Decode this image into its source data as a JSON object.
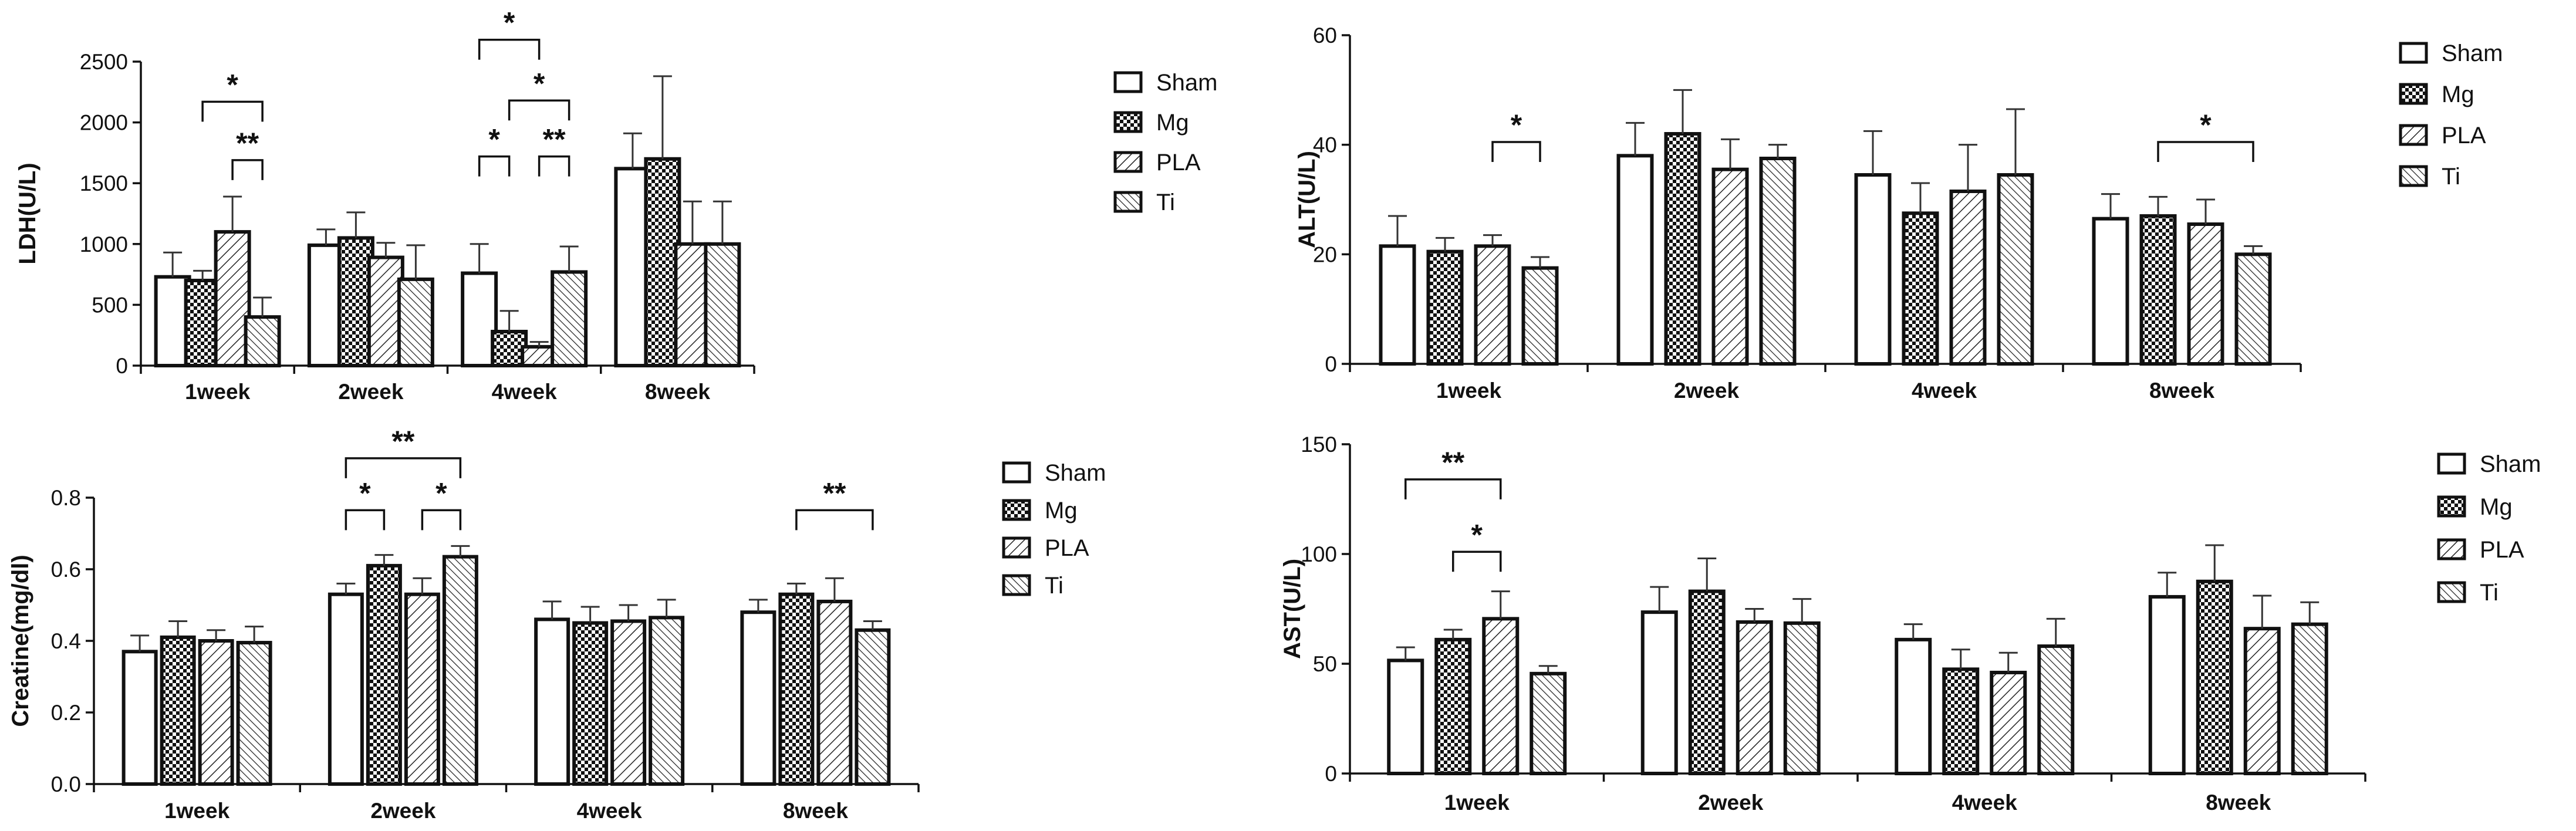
{
  "legend": {
    "sham": "Sham",
    "mg": "Mg",
    "pla": "PLA",
    "ti": "Ti"
  },
  "chart_data": [
    {
      "id": "ldh",
      "type": "bar",
      "ylabel": "LDH(U/L)",
      "xlabel": "",
      "ylim": [
        0,
        2500
      ],
      "yticks": [
        0,
        500,
        1000,
        1500,
        2000,
        2500
      ],
      "categories": [
        "1week",
        "2week",
        "4week",
        "8week"
      ],
      "series": [
        {
          "name": "Sham",
          "values": [
            730,
            990,
            760,
            1620
          ],
          "errors": [
            200,
            130,
            240,
            290
          ]
        },
        {
          "name": "Mg",
          "values": [
            700,
            1050,
            280,
            1700
          ],
          "errors": [
            80,
            210,
            170,
            680
          ]
        },
        {
          "name": "PLA",
          "values": [
            1100,
            890,
            155,
            1000
          ],
          "errors": [
            290,
            120,
            40,
            350
          ]
        },
        {
          "name": "Ti",
          "values": [
            400,
            710,
            770,
            1000
          ],
          "errors": [
            160,
            280,
            210,
            350
          ]
        }
      ],
      "annotations": [
        {
          "cat": 0,
          "from": 1,
          "to": 3,
          "label": "*",
          "value": 2170
        },
        {
          "cat": 0,
          "from": 2,
          "to": 3,
          "label": "**",
          "value": 1690
        },
        {
          "cat": 2,
          "from": 0,
          "to": 2,
          "label": "*",
          "value": 2680
        },
        {
          "cat": 2,
          "from": 1,
          "to": 3,
          "label": "*",
          "value": 2180
        },
        {
          "cat": 2,
          "from": 0,
          "to": 1,
          "label": "*",
          "value": 1720
        },
        {
          "cat": 2,
          "from": 2,
          "to": 3,
          "label": "**",
          "value": 1720
        }
      ]
    },
    {
      "id": "alt",
      "type": "bar",
      "ylabel": "ALT(U/L)",
      "xlabel": "",
      "ylim": [
        0,
        60
      ],
      "yticks": [
        0,
        20,
        40,
        60
      ],
      "categories": [
        "1week",
        "2week",
        "4week",
        "8week"
      ],
      "series": [
        {
          "name": "Sham",
          "values": [
            21.5,
            38,
            34.5,
            26.5
          ],
          "errors": [
            5.5,
            6,
            8,
            4.5
          ]
        },
        {
          "name": "Mg",
          "values": [
            20.5,
            42,
            27.5,
            27
          ],
          "errors": [
            2.5,
            8,
            5.5,
            3.5
          ]
        },
        {
          "name": "PLA",
          "values": [
            21.5,
            35.5,
            31.5,
            25.5
          ],
          "errors": [
            2,
            5.5,
            8.5,
            4.5
          ]
        },
        {
          "name": "Ti",
          "values": [
            17.5,
            37.5,
            34.5,
            20
          ],
          "errors": [
            2,
            2.5,
            12,
            1.5
          ]
        }
      ],
      "annotations": [
        {
          "cat": 0,
          "from": 2,
          "to": 3,
          "label": "*",
          "value": 40.5
        },
        {
          "cat": 3,
          "from": 1,
          "to": 3,
          "label": "*",
          "value": 40.5
        }
      ]
    },
    {
      "id": "creatine",
      "type": "bar",
      "ylabel": "Creatine(mg/dl)",
      "xlabel": "",
      "ylim": [
        0,
        0.8
      ],
      "yticks": [
        "0.0",
        "0.2",
        "0.4",
        "0.6",
        "0.8"
      ],
      "categories": [
        "1week",
        "2week",
        "4week",
        "8week"
      ],
      "series": [
        {
          "name": "Sham",
          "values": [
            0.37,
            0.53,
            0.46,
            0.48
          ],
          "errors": [
            0.045,
            0.03,
            0.05,
            0.035
          ]
        },
        {
          "name": "Mg",
          "values": [
            0.41,
            0.61,
            0.45,
            0.53
          ],
          "errors": [
            0.045,
            0.03,
            0.045,
            0.03
          ]
        },
        {
          "name": "PLA",
          "values": [
            0.4,
            0.53,
            0.455,
            0.51
          ],
          "errors": [
            0.03,
            0.045,
            0.045,
            0.065
          ]
        },
        {
          "name": "Ti",
          "values": [
            0.395,
            0.635,
            0.465,
            0.43
          ],
          "errors": [
            0.045,
            0.03,
            0.05,
            0.025
          ]
        }
      ],
      "annotations": [
        {
          "cat": 1,
          "from": 0,
          "to": 3,
          "label": "**",
          "value": 0.91
        },
        {
          "cat": 1,
          "from": 0,
          "to": 1,
          "label": "*",
          "value": 0.765
        },
        {
          "cat": 1,
          "from": 2,
          "to": 3,
          "label": "*",
          "value": 0.765
        },
        {
          "cat": 3,
          "from": 1,
          "to": 3,
          "label": "**",
          "value": 0.765
        }
      ]
    },
    {
      "id": "ast",
      "type": "bar",
      "ylabel": "AST(U/L)",
      "xlabel": "",
      "ylim": [
        0,
        150
      ],
      "yticks": [
        0,
        50,
        100,
        150
      ],
      "categories": [
        "1week",
        "2week",
        "4week",
        "8week"
      ],
      "series": [
        {
          "name": "Sham",
          "values": [
            51.5,
            73.5,
            61,
            80.5
          ],
          "errors": [
            6,
            11.5,
            7,
            11
          ]
        },
        {
          "name": "Mg",
          "values": [
            61,
            83,
            47.5,
            87.5
          ],
          "errors": [
            4.5,
            15,
            9,
            16.5
          ]
        },
        {
          "name": "PLA",
          "values": [
            70.5,
            69,
            46,
            66
          ],
          "errors": [
            12.5,
            6,
            9,
            15
          ]
        },
        {
          "name": "Ti",
          "values": [
            45.5,
            68.5,
            58,
            68
          ],
          "errors": [
            3.5,
            11,
            12.5,
            10
          ]
        }
      ],
      "annotations": [
        {
          "cat": 0,
          "from": 0,
          "to": 2,
          "label": "**",
          "value": 134
        },
        {
          "cat": 0,
          "from": 1,
          "to": 2,
          "label": "*",
          "value": 101
        }
      ]
    }
  ]
}
